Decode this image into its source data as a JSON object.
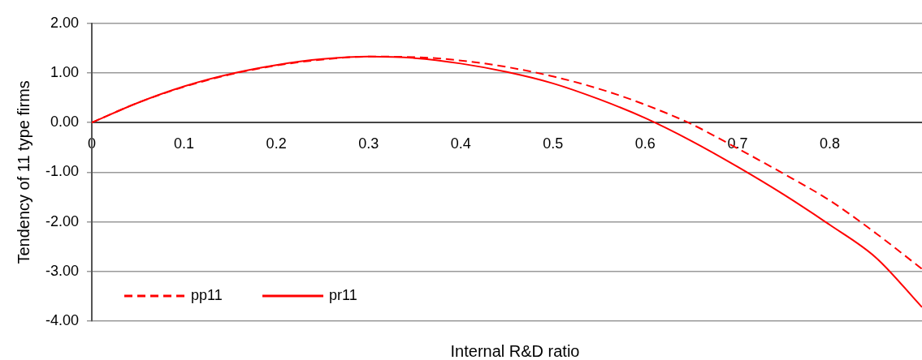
{
  "chart_data": {
    "type": "line",
    "xlabel": "Internal R&D ratio",
    "ylabel": "Tendency of 11 type firms",
    "x": [
      0,
      0.05,
      0.1,
      0.15,
      0.2,
      0.25,
      0.3,
      0.35,
      0.4,
      0.45,
      0.5,
      0.55,
      0.6,
      0.65,
      0.7,
      0.75,
      0.8,
      0.85,
      0.9
    ],
    "series": [
      {
        "name": "pp11",
        "color": "#ff0000",
        "line_style": "dashed",
        "values": [
          0,
          0.4,
          0.72,
          0.97,
          1.15,
          1.27,
          1.33,
          1.32,
          1.25,
          1.12,
          0.93,
          0.68,
          0.36,
          -0.03,
          -0.52,
          -1.03,
          -1.57,
          -2.23,
          -2.95
        ]
      },
      {
        "name": "pr11",
        "color": "#ff0000",
        "line_style": "solid",
        "values": [
          0,
          0.4,
          0.73,
          0.98,
          1.16,
          1.28,
          1.33,
          1.3,
          1.19,
          1.02,
          0.79,
          0.47,
          0.09,
          -0.37,
          -0.89,
          -1.45,
          -2.06,
          -2.72,
          -3.72
        ]
      }
    ],
    "xlim": [
      0,
      0.9
    ],
    "xticks": [
      0,
      0.1,
      0.2,
      0.3,
      0.4,
      0.5,
      0.6,
      0.7,
      0.8
    ],
    "ylim": [
      -4,
      2
    ],
    "yticks": [
      {
        "value": -4,
        "label": "-4.00"
      },
      {
        "value": -3,
        "label": "-3.00"
      },
      {
        "value": -2,
        "label": "-2.00"
      },
      {
        "value": -1,
        "label": "-1.00"
      },
      {
        "value": 0,
        "label": "0.00"
      },
      {
        "value": 1,
        "label": "1.00"
      },
      {
        "value": 2,
        "label": "2.00"
      }
    ],
    "grid": "y",
    "legend": "bottom left",
    "marker": "none"
  }
}
